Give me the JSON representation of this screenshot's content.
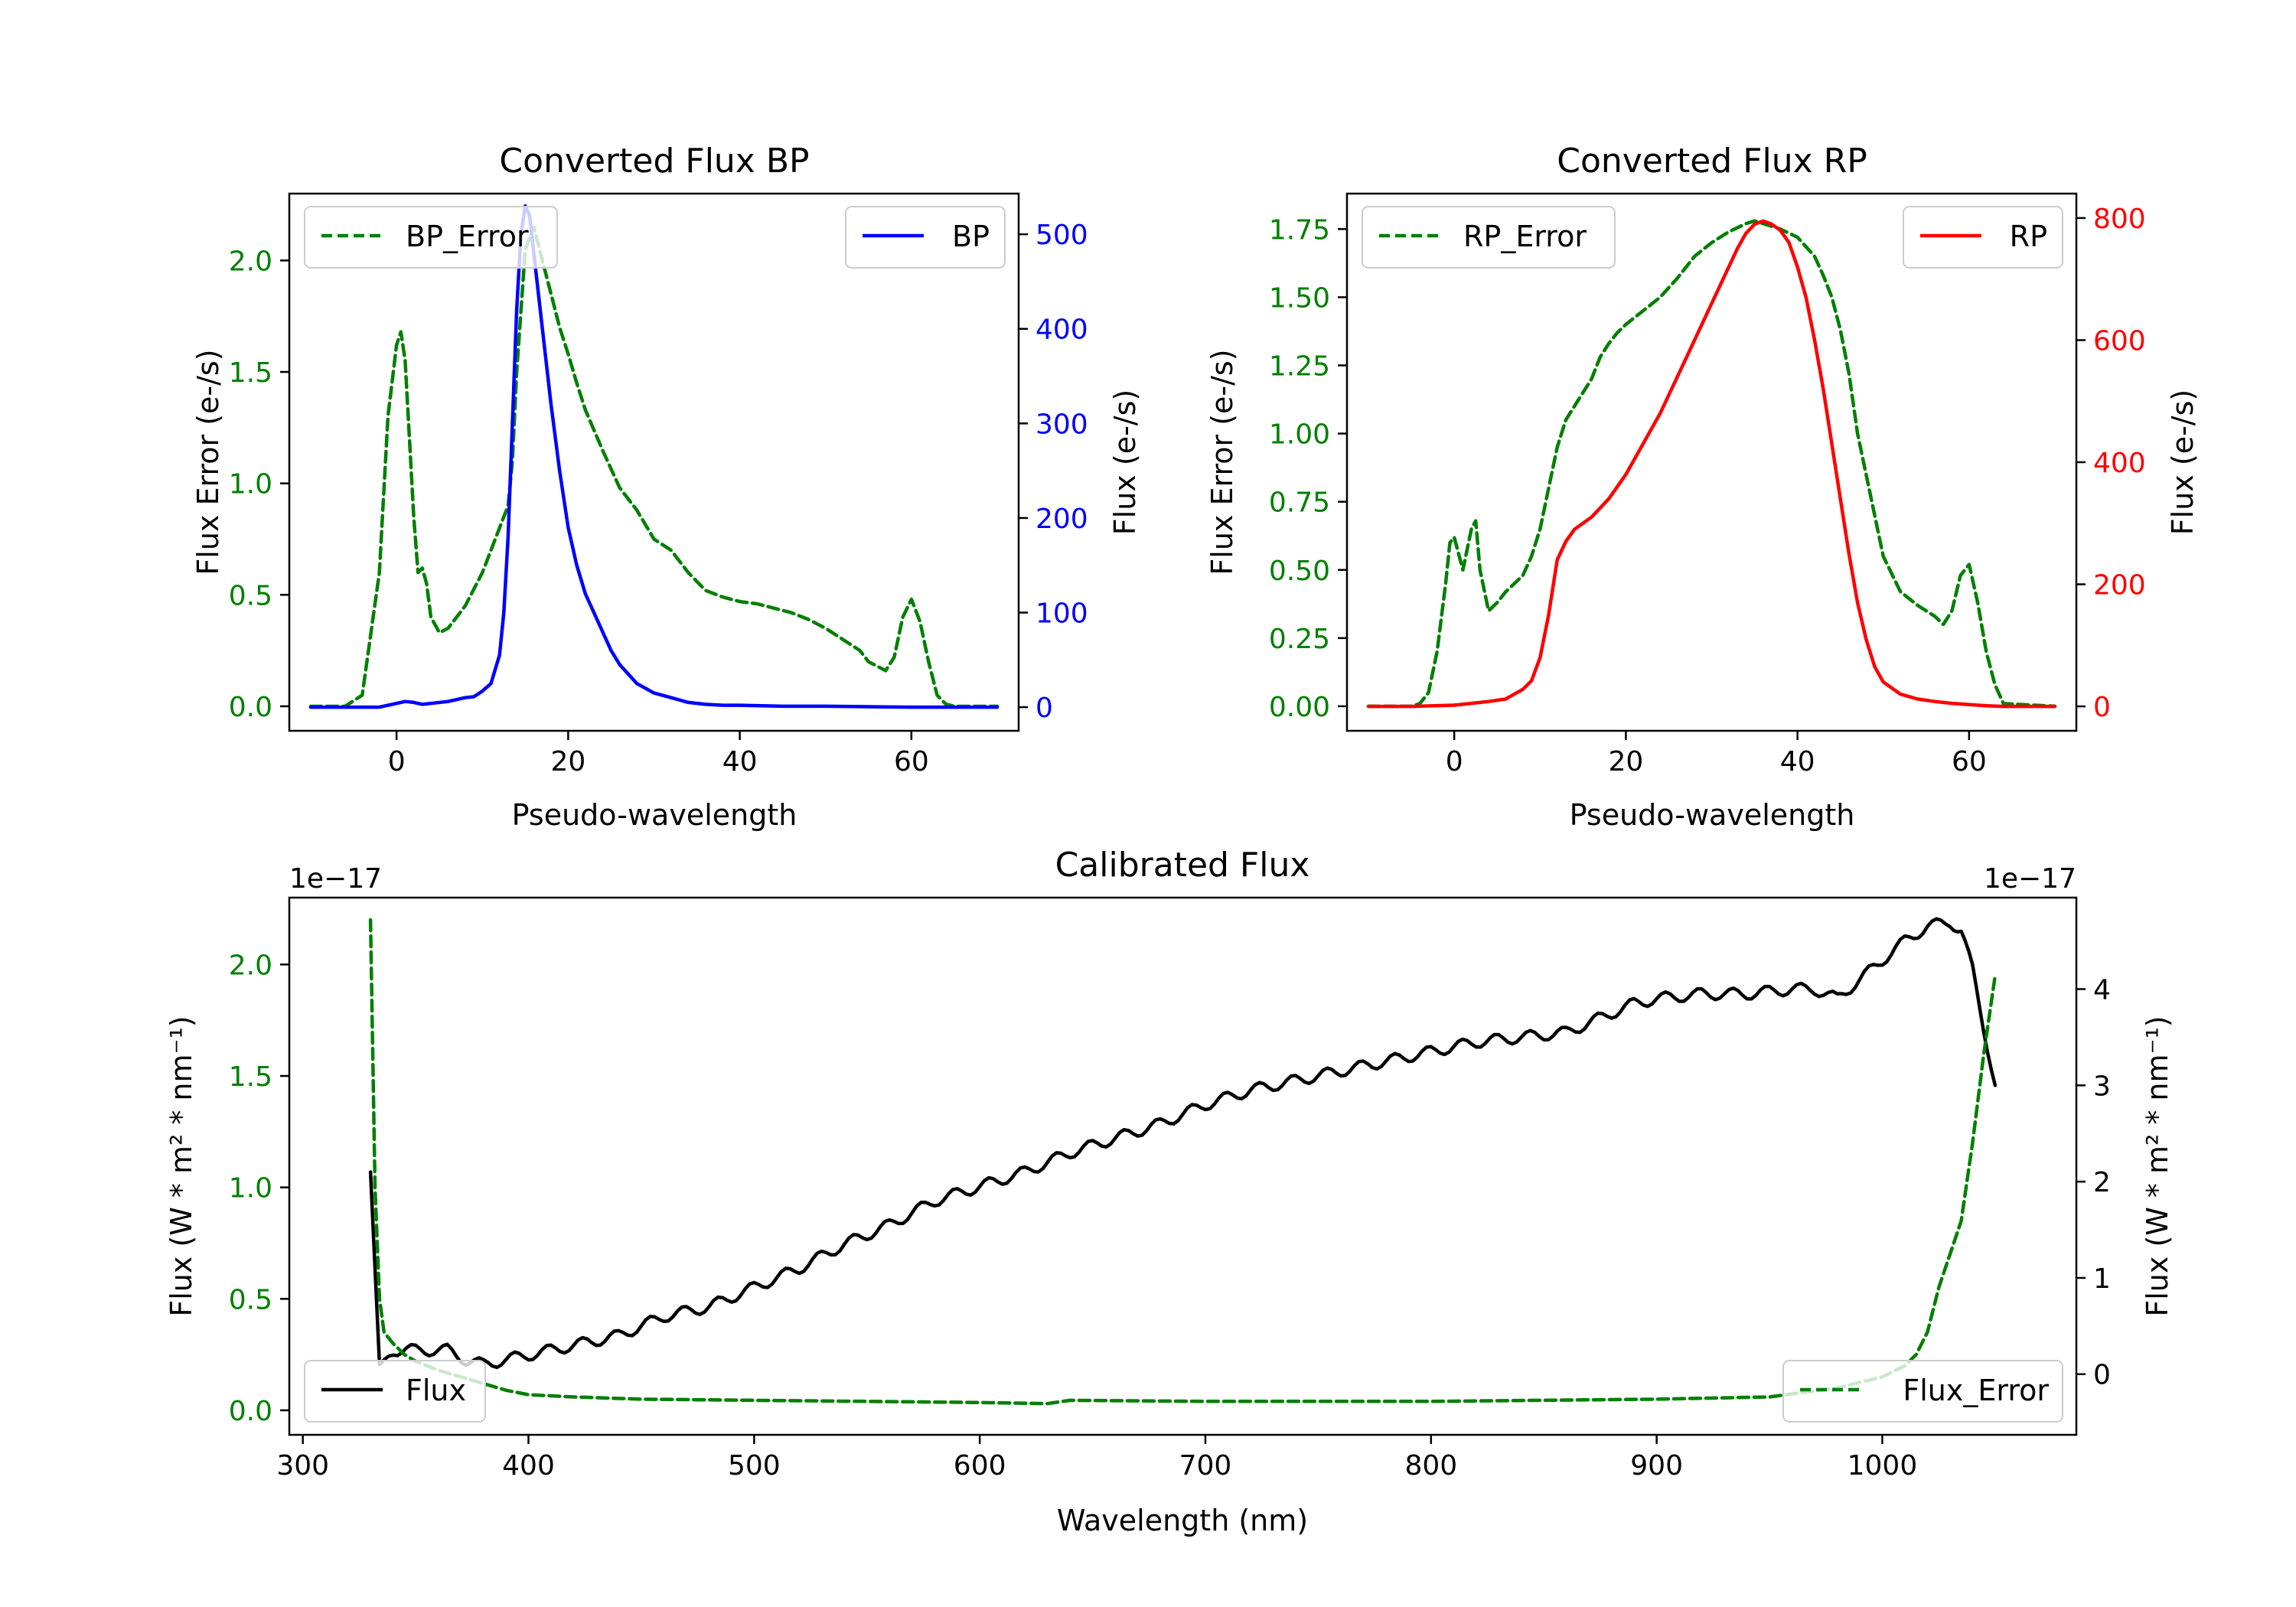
{
  "colors": {
    "green": "#008000",
    "blue": "#0000ff",
    "red": "#ff0000",
    "black": "#000000"
  },
  "chart_data": [
    {
      "id": "bp",
      "type": "line",
      "title": "Converted Flux BP",
      "xlabel": "Pseudo-wavelength",
      "xlim": [
        -12.5,
        72.5
      ],
      "xticks": [
        0,
        20,
        40,
        60
      ],
      "xtick_labels": [
        "0",
        "20",
        "40",
        "60"
      ],
      "left_axis": {
        "label": "Flux Error (e-/s)",
        "color": "#008000",
        "ylim": [
          -0.11,
          2.3
        ],
        "ticks": [
          0,
          0.5,
          1.0,
          1.5,
          2.0
        ],
        "tick_labels": [
          "0.0",
          "0.5",
          "1.0",
          "1.5",
          "2.0"
        ]
      },
      "right_axis": {
        "label": "Flux (e-/s)",
        "color": "#0000ff",
        "ylim": [
          -25,
          543
        ],
        "ticks": [
          0,
          100,
          200,
          300,
          400,
          500
        ],
        "tick_labels": [
          "0",
          "100",
          "200",
          "300",
          "400",
          "500"
        ]
      },
      "legend_left": "top-left",
      "legend_right": "top-right",
      "series": [
        {
          "name": "BP_Error",
          "axis": "left",
          "color": "#008000",
          "style": "dashed",
          "x": [
            -10,
            -6,
            -4,
            -2,
            -1,
            0,
            0.5,
            1,
            2,
            2.5,
            3,
            3.5,
            4,
            5,
            6,
            8,
            10,
            11,
            12,
            13,
            13.5,
            14,
            15,
            16,
            17,
            18,
            19,
            20,
            21,
            22,
            24,
            26,
            28,
            30,
            32,
            34,
            36,
            38,
            40,
            42,
            44,
            46,
            48,
            50,
            52,
            54,
            55,
            56,
            57,
            58,
            59,
            60,
            61,
            62,
            63,
            64,
            65,
            66,
            67,
            68,
            70
          ],
          "y": [
            0,
            0,
            0.05,
            0.6,
            1.3,
            1.62,
            1.68,
            1.55,
            0.85,
            0.6,
            0.62,
            0.55,
            0.4,
            0.33,
            0.35,
            0.45,
            0.6,
            0.7,
            0.8,
            0.9,
            1.1,
            1.5,
            2.05,
            2.15,
            2.0,
            1.85,
            1.7,
            1.58,
            1.45,
            1.33,
            1.15,
            0.98,
            0.88,
            0.75,
            0.7,
            0.6,
            0.52,
            0.49,
            0.47,
            0.46,
            0.44,
            0.42,
            0.39,
            0.35,
            0.3,
            0.25,
            0.2,
            0.18,
            0.16,
            0.22,
            0.4,
            0.48,
            0.38,
            0.2,
            0.05,
            0.01,
            0,
            0,
            0,
            0,
            0
          ]
        },
        {
          "name": "BP",
          "axis": "right",
          "color": "#0000ff",
          "style": "solid",
          "x": [
            -10,
            -5,
            -2,
            0,
            1,
            2,
            3,
            4,
            6,
            8,
            9,
            10,
            11,
            12,
            12.5,
            13,
            13.5,
            14,
            14.5,
            15,
            15.5,
            16,
            17,
            18,
            19,
            20,
            21,
            22,
            23,
            24,
            25,
            26,
            27,
            28,
            30,
            32,
            34,
            36,
            38,
            40,
            45,
            50,
            55,
            60,
            65,
            70
          ],
          "y": [
            0,
            0,
            0,
            4,
            6,
            5,
            3,
            4,
            6,
            10,
            11,
            17,
            25,
            55,
            100,
            180,
            300,
            420,
            500,
            530,
            520,
            480,
            400,
            320,
            250,
            190,
            150,
            120,
            100,
            80,
            60,
            45,
            35,
            25,
            15,
            10,
            5,
            3,
            2,
            2,
            1,
            1,
            0.5,
            0,
            0,
            0
          ]
        }
      ]
    },
    {
      "id": "rp",
      "type": "line",
      "title": "Converted Flux RP",
      "xlabel": "Pseudo-wavelength",
      "xlim": [
        -12.5,
        72.5
      ],
      "xticks": [
        0,
        20,
        40,
        60
      ],
      "xtick_labels": [
        "0",
        "20",
        "40",
        "60"
      ],
      "left_axis": {
        "label": "Flux Error (e-/s)",
        "color": "#008000",
        "ylim": [
          -0.09,
          1.88
        ],
        "ticks": [
          0,
          0.25,
          0.5,
          0.75,
          1.0,
          1.25,
          1.5,
          1.75
        ],
        "tick_labels": [
          "0.00",
          "0.25",
          "0.50",
          "0.75",
          "1.00",
          "1.25",
          "1.50",
          "1.75"
        ]
      },
      "right_axis": {
        "label": "Flux (e-/s)",
        "color": "#ff0000",
        "ylim": [
          -40,
          840
        ],
        "ticks": [
          0,
          200,
          400,
          600,
          800
        ],
        "tick_labels": [
          "0",
          "200",
          "400",
          "600",
          "800"
        ]
      },
      "legend_left": "top-left",
      "legend_right": "top-right",
      "series": [
        {
          "name": "RP_Error",
          "axis": "left",
          "color": "#008000",
          "style": "dashed",
          "x": [
            -10,
            -5,
            -4,
            -3,
            -2,
            -1,
            -0.5,
            0,
            1,
            2,
            2.5,
            3,
            4,
            5,
            6,
            7,
            8,
            9,
            10,
            11,
            12,
            13,
            14,
            15,
            16,
            17,
            18,
            19,
            20,
            22,
            24,
            26,
            28,
            30,
            32,
            34,
            35,
            36,
            38,
            40,
            42,
            43,
            44,
            45,
            46,
            47,
            48,
            50,
            52,
            54,
            55,
            56,
            57,
            58,
            59,
            60,
            61,
            62,
            63,
            64,
            70
          ],
          "y": [
            0,
            0,
            0.01,
            0.05,
            0.2,
            0.45,
            0.6,
            0.62,
            0.5,
            0.65,
            0.68,
            0.5,
            0.35,
            0.38,
            0.42,
            0.45,
            0.48,
            0.55,
            0.65,
            0.8,
            0.95,
            1.05,
            1.1,
            1.15,
            1.2,
            1.28,
            1.33,
            1.37,
            1.4,
            1.45,
            1.5,
            1.57,
            1.65,
            1.7,
            1.74,
            1.77,
            1.78,
            1.77,
            1.75,
            1.72,
            1.65,
            1.58,
            1.5,
            1.38,
            1.22,
            1.0,
            0.85,
            0.55,
            0.42,
            0.37,
            0.35,
            0.33,
            0.3,
            0.35,
            0.48,
            0.52,
            0.38,
            0.2,
            0.08,
            0.01,
            0
          ]
        },
        {
          "name": "RP",
          "axis": "right",
          "color": "#ff0000",
          "style": "solid",
          "x": [
            -10,
            -5,
            0,
            2,
            4,
            6,
            7,
            8,
            9,
            10,
            11,
            12,
            13,
            14,
            15,
            16,
            18,
            20,
            22,
            24,
            26,
            28,
            30,
            32,
            33,
            34,
            35,
            36,
            37,
            38,
            39,
            40,
            41,
            42,
            43,
            44,
            45,
            46,
            47,
            48,
            49,
            50,
            52,
            54,
            56,
            58,
            60,
            62,
            64,
            66,
            70
          ],
          "y": [
            0,
            0,
            2,
            5,
            8,
            12,
            20,
            28,
            42,
            80,
            150,
            240,
            270,
            290,
            300,
            310,
            340,
            380,
            430,
            480,
            540,
            600,
            660,
            720,
            750,
            775,
            790,
            795,
            790,
            780,
            760,
            720,
            670,
            600,
            520,
            430,
            340,
            250,
            170,
            110,
            65,
            40,
            20,
            12,
            8,
            5,
            3,
            1,
            0,
            0,
            0
          ]
        }
      ]
    },
    {
      "id": "calibrated",
      "type": "line",
      "title": "Calibrated Flux",
      "xlabel": "Wavelength (nm)",
      "xlim": [
        294,
        1086
      ],
      "xticks": [
        300,
        400,
        500,
        600,
        700,
        800,
        900,
        1000
      ],
      "xtick_labels": [
        "300",
        "400",
        "500",
        "600",
        "700",
        "800",
        "900",
        "1000"
      ],
      "left_axis": {
        "label": "Flux (W * m² * nm⁻¹)",
        "color": "#008000",
        "ylim": [
          -0.11,
          2.3
        ],
        "offset_label": "1e−17",
        "ticks": [
          0,
          0.5,
          1.0,
          1.5,
          2.0
        ],
        "tick_labels": [
          "0.0",
          "0.5",
          "1.0",
          "1.5",
          "2.0"
        ]
      },
      "right_axis": {
        "label": "Flux (W * m² * nm⁻¹)",
        "color": "#000000",
        "ylim": [
          -0.63,
          4.95
        ],
        "offset_label": "1e−17",
        "ticks": [
          0,
          1,
          2,
          3,
          4
        ],
        "tick_labels": [
          "0",
          "1",
          "2",
          "3",
          "4"
        ]
      },
      "legend_left": "bottom-left",
      "legend_right": "bottom-right",
      "series": [
        {
          "name": "Flux",
          "axis": "right",
          "color": "#000000",
          "style": "solid",
          "x": [
            330,
            334,
            340,
            348,
            356,
            364,
            372,
            380,
            400,
            420,
            440,
            460,
            480,
            500,
            520,
            540,
            560,
            580,
            600,
            620,
            640,
            660,
            680,
            700,
            720,
            740,
            760,
            780,
            800,
            820,
            840,
            860,
            880,
            890,
            900,
            920,
            940,
            960,
            970,
            980,
            1000,
            1010,
            1020,
            1030,
            1035,
            1040,
            1045,
            1050
          ],
          "y": [
            2.1,
            0.1,
            0.25,
            0.25,
            0.25,
            0.25,
            0.15,
            0.1,
            0.2,
            0.3,
            0.4,
            0.6,
            0.7,
            0.9,
            1.1,
            1.35,
            1.55,
            1.8,
            1.95,
            2.1,
            2.3,
            2.45,
            2.6,
            2.8,
            2.95,
            3.05,
            3.15,
            3.25,
            3.35,
            3.45,
            3.5,
            3.55,
            3.75,
            3.85,
            3.9,
            3.95,
            3.95,
            4.0,
            4.0,
            3.9,
            4.3,
            4.5,
            4.65,
            4.7,
            4.6,
            4.2,
            3.6,
            3.0
          ],
          "oscillation": {
            "amplitude": 0.06,
            "period_nm": 15
          }
        },
        {
          "name": "Flux_Error",
          "axis": "left",
          "color": "#008000",
          "style": "dashed",
          "x": [
            330,
            332,
            334,
            336,
            340,
            345,
            350,
            360,
            370,
            380,
            390,
            400,
            420,
            450,
            500,
            550,
            600,
            630,
            640,
            700,
            800,
            900,
            950,
            980,
            1000,
            1010,
            1015,
            1020,
            1025,
            1030,
            1035,
            1040,
            1045,
            1050
          ],
          "y": [
            2.2,
            1.0,
            0.5,
            0.35,
            0.3,
            0.25,
            0.22,
            0.18,
            0.15,
            0.12,
            0.09,
            0.07,
            0.06,
            0.05,
            0.045,
            0.04,
            0.035,
            0.03,
            0.045,
            0.04,
            0.04,
            0.05,
            0.06,
            0.1,
            0.15,
            0.2,
            0.25,
            0.35,
            0.55,
            0.7,
            0.85,
            1.2,
            1.6,
            1.95
          ]
        }
      ]
    }
  ]
}
